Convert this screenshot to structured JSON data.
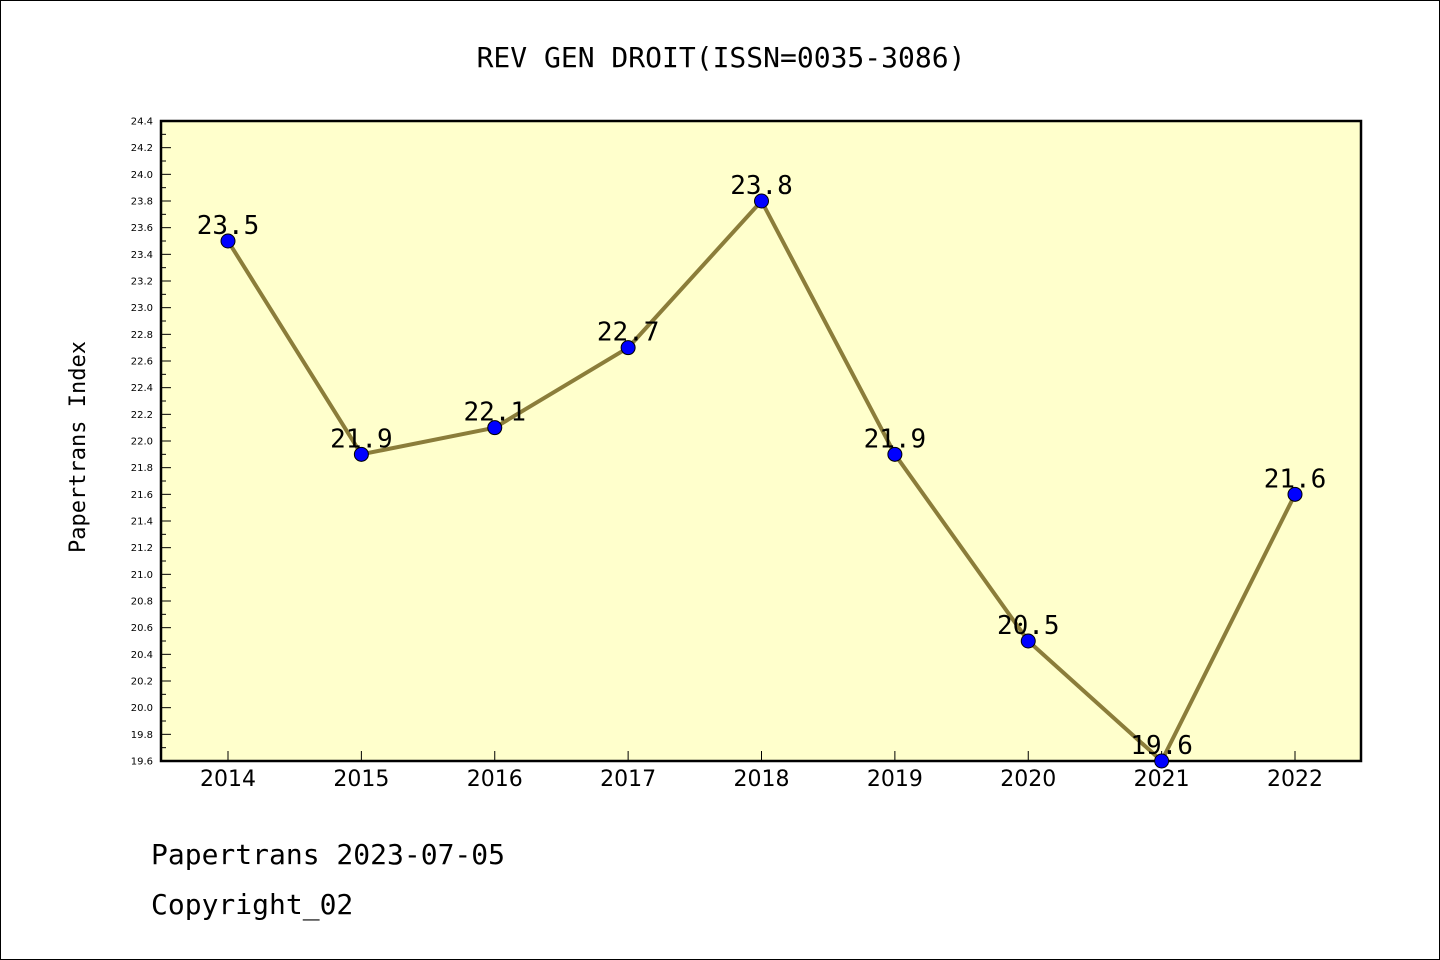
{
  "chart_data": {
    "type": "line",
    "title": "REV GEN DROIT(ISSN=0035-3086)",
    "ylabel": "Papertrans Index",
    "xlabel": "",
    "categories": [
      "2014",
      "2015",
      "2016",
      "2017",
      "2018",
      "2019",
      "2020",
      "2021",
      "2022"
    ],
    "series": [
      {
        "values": [
          23.5,
          21.9,
          22.1,
          22.7,
          23.8,
          21.9,
          20.5,
          19.6,
          21.6
        ]
      }
    ],
    "data_labels": [
      "23.5",
      "21.9",
      "22.1",
      "22.7",
      "23.8",
      "21.9",
      "20.5",
      "19.6",
      "21.6"
    ],
    "ylim": [
      19.6,
      24.4
    ],
    "yticks": [
      "19.6",
      "19.8",
      "20.0",
      "20.2",
      "20.4",
      "20.6",
      "20.8",
      "21.0",
      "21.2",
      "21.4",
      "21.6",
      "21.8",
      "22.0",
      "22.2",
      "22.4",
      "22.6",
      "22.8",
      "23.0",
      "23.2",
      "23.4",
      "23.6",
      "23.8",
      "24.0",
      "24.2",
      "24.4"
    ],
    "grid": false,
    "colors": {
      "plot_background": "#ffffcc",
      "line": "#8b7d3a",
      "marker": "#0000ff"
    }
  },
  "footer": {
    "line1": "Papertrans 2023-07-05",
    "line2": "Copyright_02"
  }
}
